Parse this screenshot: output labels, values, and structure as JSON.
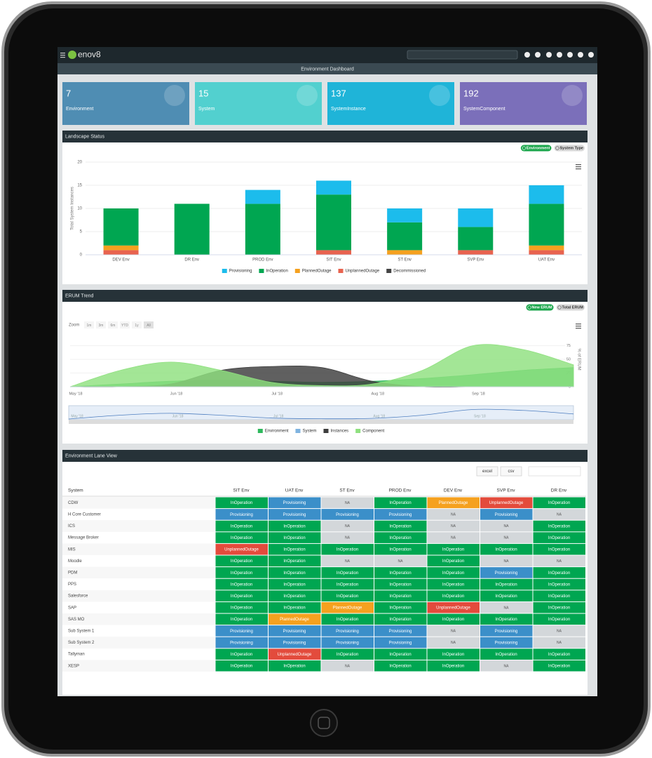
{
  "app": {
    "brand": "enov8",
    "page_title": "Environment Dashboard"
  },
  "cards": [
    {
      "value": 7,
      "label": "Environment",
      "color": "#4f8db3"
    },
    {
      "value": 15,
      "label": "System",
      "color": "#52d0cf"
    },
    {
      "value": 137,
      "label": "SystemInstance",
      "color": "#1fb4d8"
    },
    {
      "value": 192,
      "label": "SystemComponent",
      "color": "#7b6fba"
    }
  ],
  "chart_data": [
    {
      "type": "bar",
      "title": "Landscape Status",
      "toggles": [
        "Environment",
        "System Type"
      ],
      "ylabel": "Total System Instances",
      "stacked": true,
      "categories": [
        "DEV Env",
        "DR Env",
        "PROD Env",
        "SIT Env",
        "ST Env",
        "SVP Env",
        "UAT Env"
      ],
      "series": [
        {
          "name": "Provisioning",
          "color": "#1cbcec",
          "values": [
            0,
            0,
            3,
            3,
            3,
            4,
            4
          ]
        },
        {
          "name": "InOperation",
          "color": "#00a651",
          "values": [
            8,
            11,
            11,
            12,
            6,
            5,
            9
          ]
        },
        {
          "name": "PlannedOutage",
          "color": "#f5a11f",
          "values": [
            1,
            0,
            0,
            0,
            1,
            0,
            1
          ]
        },
        {
          "name": "UnplannedOutage",
          "color": "#e8634f",
          "values": [
            1,
            0,
            0,
            1,
            0,
            1,
            1
          ]
        },
        {
          "name": "Decommissioned",
          "color": "#444444",
          "values": [
            0,
            0,
            0,
            0,
            0,
            0,
            0
          ]
        }
      ],
      "ylim": [
        0,
        20
      ],
      "yticks": [
        0,
        5,
        10,
        15,
        20
      ],
      "grid": true
    },
    {
      "type": "area",
      "title": "ERUM Trend",
      "toggles": [
        "New ERUM",
        "Total ERUM"
      ],
      "zoom_label": "Zoom",
      "zoom_options": [
        "1m",
        "3m",
        "6m",
        "YTD",
        "1y",
        "All"
      ],
      "y2label": "% of ERUM",
      "categories": [
        "May '18",
        null,
        "Jun '18",
        null,
        "Jul '18",
        null,
        "Aug '18",
        null,
        "Sep '18",
        null,
        null
      ],
      "series": [
        {
          "name": "Environment",
          "color": "#2db85c",
          "values": [
            0,
            5,
            10,
            12,
            10,
            8,
            10,
            15,
            22,
            30,
            35
          ]
        },
        {
          "name": "System",
          "color": "#7fb3e0",
          "values": [
            0,
            0,
            0,
            0,
            0,
            0,
            0,
            0,
            0,
            0,
            0
          ]
        },
        {
          "name": "Instances",
          "color": "#3d3d3d",
          "values": [
            0,
            0,
            5,
            30,
            37,
            35,
            10,
            0,
            0,
            0,
            0
          ]
        },
        {
          "name": "Component",
          "color": "#8fe07f",
          "values": [
            0,
            30,
            45,
            30,
            8,
            2,
            5,
            30,
            75,
            68,
            40
          ]
        }
      ],
      "ylim": [
        0,
        100
      ],
      "yticks": [
        0,
        25,
        50,
        75
      ],
      "grid": true
    }
  ],
  "table": {
    "title": "Environment Lane View",
    "buttons": [
      "excel",
      "csv"
    ],
    "columns": [
      "System",
      "SIT Env",
      "UAT Env",
      "ST Env",
      "PROD Env",
      "DEV Env",
      "SVP Env",
      "DR Env"
    ],
    "status_colors": {
      "InOperation": "#00a651",
      "Provisioning": "#3b8fc9",
      "NA": "#d3d7da",
      "PlannedOutage": "#f5a11f",
      "UnplannedOutage": "#e34b3c"
    },
    "rows": [
      [
        "CDW",
        "InOperation",
        "Provisioning",
        "NA",
        "InOperation",
        "PlannedOutage",
        "UnplannedOutage",
        "InOperation"
      ],
      [
        "H Core Customer",
        "Provisioning",
        "Provisioning",
        "Provisioning",
        "Provisioning",
        "NA",
        "Provisioning",
        "NA"
      ],
      [
        "ICS",
        "InOperation",
        "InOperation",
        "NA",
        "InOperation",
        "NA",
        "NA",
        "InOperation"
      ],
      [
        "Message Broker",
        "InOperation",
        "InOperation",
        "NA",
        "InOperation",
        "NA",
        "NA",
        "InOperation"
      ],
      [
        "MIS",
        "UnplannedOutage",
        "InOperation",
        "InOperation",
        "InOperation",
        "InOperation",
        "InOperation",
        "InOperation"
      ],
      [
        "Moodle",
        "InOperation",
        "InOperation",
        "NA",
        "NA",
        "InOperation",
        "NA",
        "NA"
      ],
      [
        "PDM",
        "InOperation",
        "InOperation",
        "InOperation",
        "InOperation",
        "InOperation",
        "Provisioning",
        "InOperation"
      ],
      [
        "PPS",
        "InOperation",
        "InOperation",
        "InOperation",
        "InOperation",
        "InOperation",
        "InOperation",
        "InOperation"
      ],
      [
        "Salesforce",
        "InOperation",
        "InOperation",
        "InOperation",
        "InOperation",
        "InOperation",
        "InOperation",
        "InOperation"
      ],
      [
        "SAP",
        "InOperation",
        "InOperation",
        "PlannedOutage",
        "InOperation",
        "UnplannedOutage",
        "NA",
        "InOperation"
      ],
      [
        "SAS MO",
        "InOperation",
        "PlannedOutage",
        "InOperation",
        "InOperation",
        "InOperation",
        "InOperation",
        "InOperation"
      ],
      [
        "Sub System 1",
        "Provisioning",
        "Provisioning",
        "Provisioning",
        "Provisioning",
        "NA",
        "Provisioning",
        "NA"
      ],
      [
        "Sub System 2",
        "Provisioning",
        "Provisioning",
        "Provisioning",
        "Provisioning",
        "NA",
        "Provisioning",
        "NA"
      ],
      [
        "Tallyman",
        "InOperation",
        "UnplannedOutage",
        "InOperation",
        "InOperation",
        "InOperation",
        "InOperation",
        "InOperation"
      ],
      [
        "XESP",
        "InOperation",
        "InOperation",
        "NA",
        "InOperation",
        "InOperation",
        "NA",
        "InOperation"
      ]
    ]
  }
}
